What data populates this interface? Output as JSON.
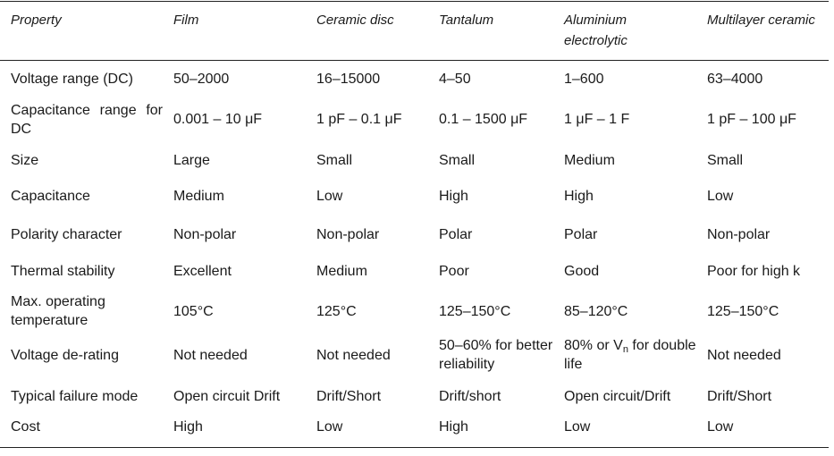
{
  "headers": [
    "Property",
    "Film",
    "Ceramic disc",
    "Tantalum",
    "Aluminium electrolytic",
    "Multilayer ceramic"
  ],
  "rows": [
    {
      "property": "Voltage range (DC)",
      "values": [
        "50–2000",
        "16–15000",
        "4–50",
        "1–600",
        "63–4000"
      ]
    },
    {
      "property": "Capacitance range for DC",
      "values": [
        "0.001 – 10 μF",
        "1 pF – 0.1 μF",
        "0.1 – 1500 μF",
        "1 μF – 1 F",
        "1 pF – 100 μF"
      ]
    },
    {
      "property": "Size",
      "values": [
        "Large",
        "Small",
        "Small",
        "Medium",
        "Small"
      ]
    },
    {
      "property": "Capacitance",
      "values": [
        "Medium",
        "Low",
        "High",
        "High",
        "Low"
      ]
    },
    {
      "property": "Polarity character",
      "values": [
        "Non-polar",
        "Non-polar",
        "Polar",
        "Polar",
        "Non-polar"
      ]
    },
    {
      "property": "Thermal stability",
      "values": [
        "Excellent",
        "Medium",
        "Poor",
        "Good",
        "Poor for high k"
      ]
    },
    {
      "property": "Max. operating temperature",
      "values": [
        "105°C",
        "125°C",
        "125–150°C",
        "85–120°C",
        "125–150°C"
      ]
    },
    {
      "property": "Voltage de-rating",
      "values": [
        "Not needed",
        "Not needed",
        "50–60% for better reliability",
        "80% or Vn for double life",
        "Not needed"
      ],
      "vn_note": {
        "prefix": "80% or V",
        "sub": "n",
        "suffix": " for double",
        "line2": "life"
      }
    },
    {
      "property": "Typical failure mode",
      "values": [
        "Open circuit Drift",
        "Drift/Short",
        "Drift/short",
        "Open circuit/Drift",
        "Drift/Short"
      ]
    },
    {
      "property": "Cost",
      "values": [
        "High",
        "Low",
        "High",
        "Low",
        "Low"
      ]
    }
  ]
}
